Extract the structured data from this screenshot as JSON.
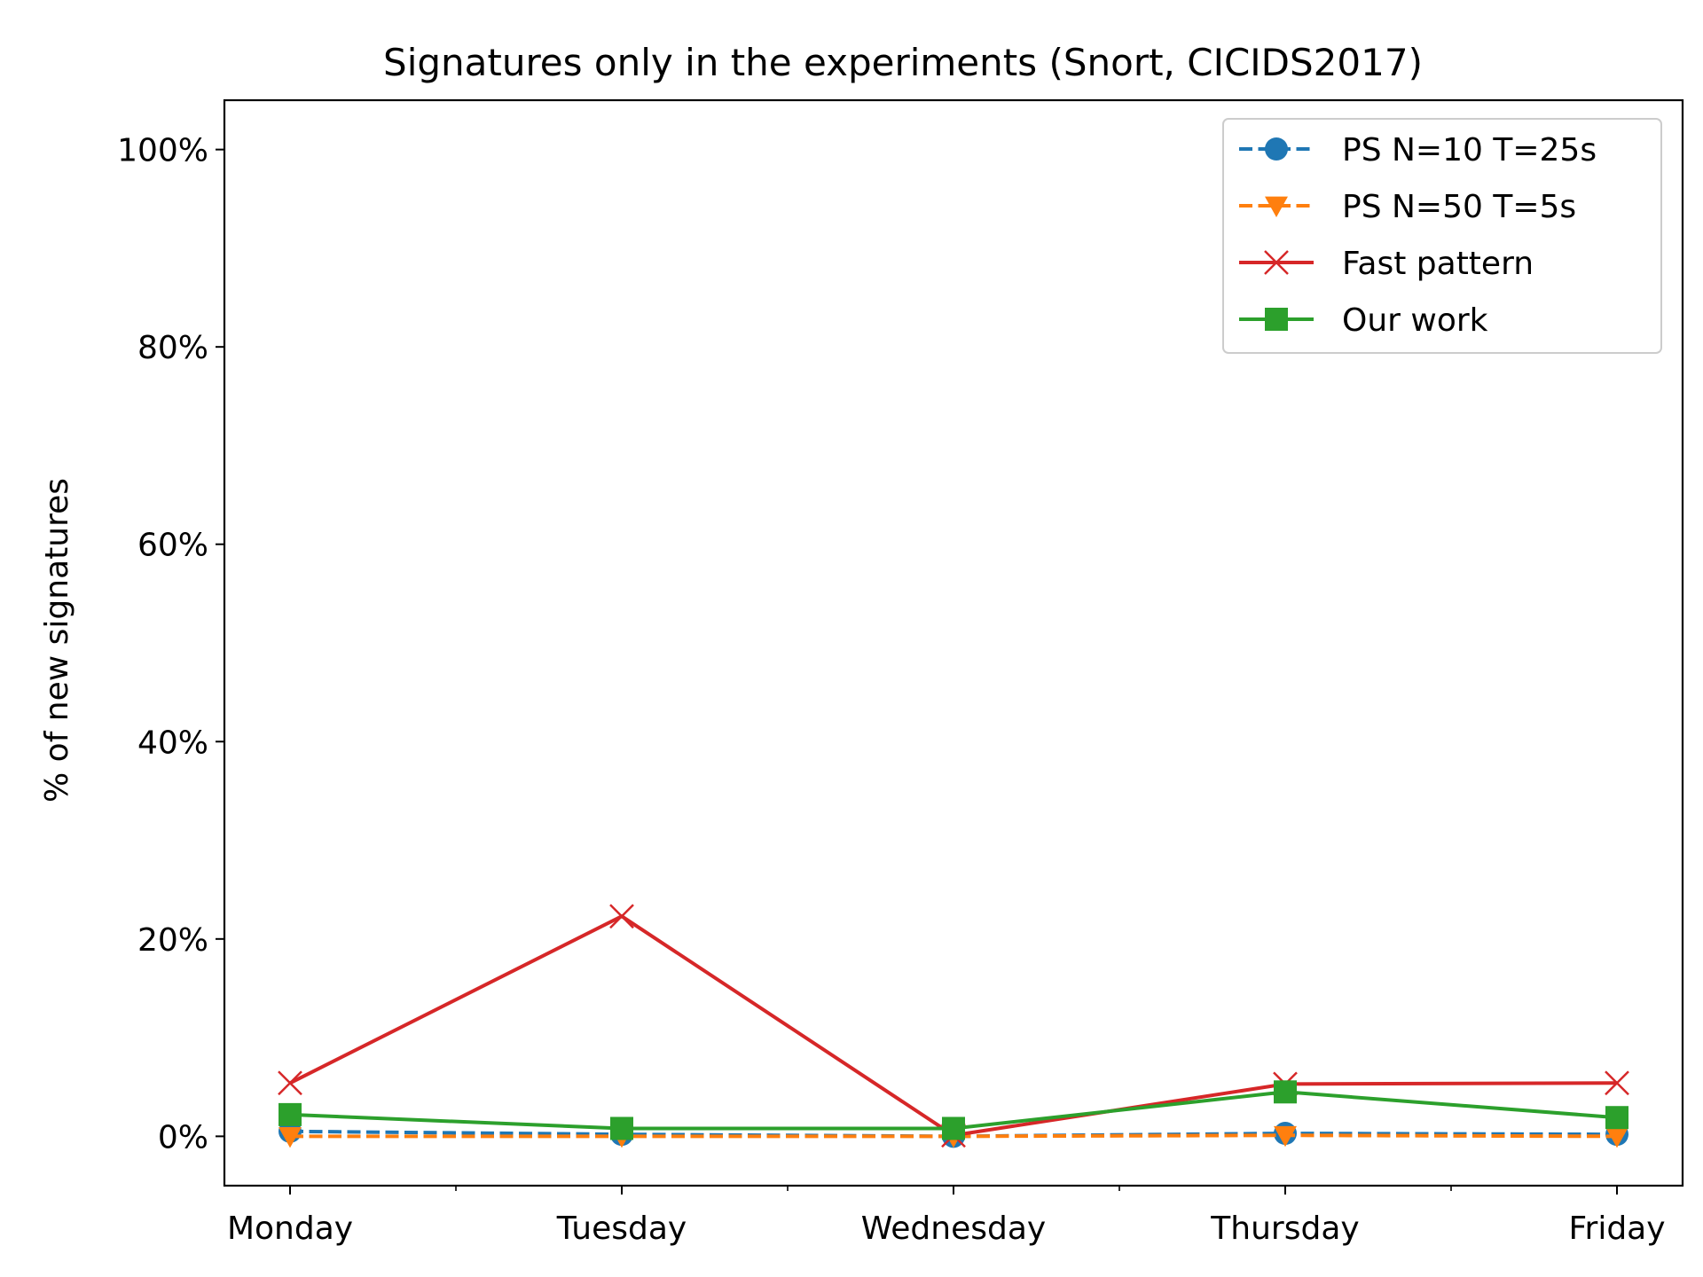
{
  "chart_data": {
    "type": "line",
    "title": "Signatures only in the experiments (Snort, CICIDS2017)",
    "xlabel": "",
    "ylabel": "% of new signatures",
    "categories": [
      "Monday",
      "Tuesday",
      "Wednesday",
      "Thursday",
      "Friday"
    ],
    "ylim": [
      -5,
      105
    ],
    "yticks": [
      0,
      20,
      40,
      60,
      80,
      100
    ],
    "ytick_labels": [
      "0%",
      "20%",
      "40%",
      "60%",
      "80%",
      "100%"
    ],
    "grid": false,
    "legend_position": "top-right",
    "series": [
      {
        "name": "PS N=10 T=25s",
        "values": [
          0.5,
          0.2,
          0.0,
          0.3,
          0.2
        ],
        "color": "#1f77b4",
        "linestyle": "dashed",
        "marker": "circle"
      },
      {
        "name": "PS N=50 T=5s",
        "values": [
          0.0,
          0.0,
          0.0,
          0.1,
          0.0
        ],
        "color": "#ff7f0e",
        "linestyle": "dashed",
        "marker": "triangle-down"
      },
      {
        "name": "Fast pattern",
        "values": [
          5.4,
          22.3,
          0.1,
          5.3,
          5.4
        ],
        "color": "#d62728",
        "linestyle": "solid",
        "marker": "x"
      },
      {
        "name": "Our work",
        "values": [
          2.2,
          0.8,
          0.8,
          4.5,
          1.9
        ],
        "color": "#2ca02c",
        "linestyle": "solid",
        "marker": "square"
      }
    ]
  }
}
